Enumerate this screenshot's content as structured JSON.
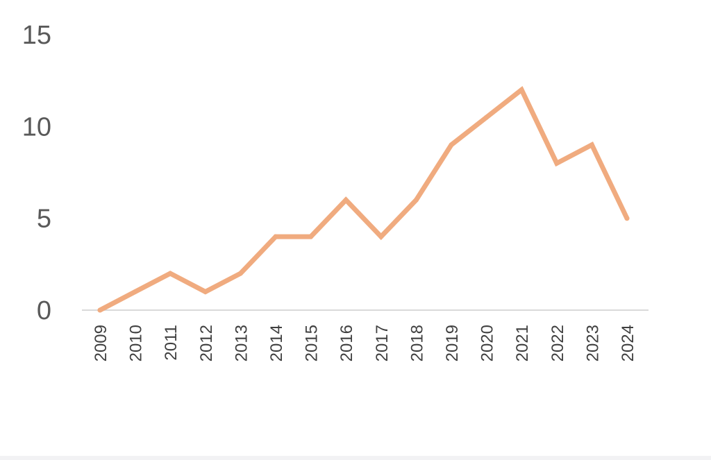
{
  "chart_data": {
    "type": "line",
    "title": "",
    "xlabel": "",
    "ylabel": "",
    "x": [
      "2009",
      "2010",
      "2011",
      "2012",
      "2013",
      "2014",
      "2015",
      "2016",
      "2017",
      "2018",
      "2019",
      "2020",
      "2021",
      "2022",
      "2023",
      "2024"
    ],
    "series": [
      {
        "values": [
          0,
          1,
          2,
          1,
          2,
          4,
          4,
          6,
          4,
          6,
          9,
          10.5,
          12,
          8,
          9,
          5
        ],
        "color": "#f0ab7f"
      }
    ],
    "ylim": [
      0,
      15
    ],
    "yticks": [
      0,
      5,
      10,
      15
    ],
    "ytick_labels": [
      "0",
      "5",
      "10",
      "15"
    ],
    "grid": false,
    "legend": "none",
    "axis_color": "#d9d9d9"
  }
}
